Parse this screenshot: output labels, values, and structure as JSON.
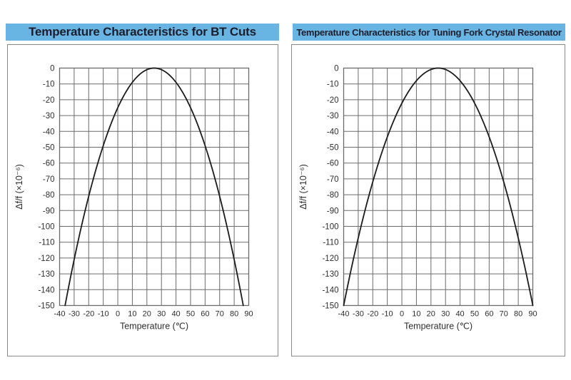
{
  "colors": {
    "background": "#ffffff",
    "title_bg": "#68b5e4",
    "title_text": "#1d1d2b",
    "panel_border": "#8a8a8a",
    "grid_line": "#6b6b6b",
    "axis_text": "#2e2e2e",
    "curve": "#1c1c1c"
  },
  "chart_data": [
    {
      "type": "line",
      "title": "Temperature Characteristics for BT Cuts",
      "xlabel": "Temperature (℃)",
      "ylabel": "Δf/f (×10⁻⁶)",
      "xlim": [
        -40,
        90
      ],
      "ylim": [
        -150,
        0
      ],
      "x_ticks": [
        -40,
        -30,
        -20,
        -10,
        0,
        10,
        20,
        30,
        40,
        50,
        60,
        70,
        80,
        90
      ],
      "y_ticks": [
        0,
        -10,
        -20,
        -30,
        -40,
        -50,
        -60,
        -70,
        -80,
        -90,
        -100,
        -110,
        -120,
        -130,
        -140,
        -150
      ],
      "grid": true,
      "legend": null,
      "curve": {
        "model": "parabola",
        "formula": "Δf/f = k × (T − 25)²",
        "k": -0.04,
        "turnover_temp_c": 25,
        "peak": [
          25,
          0
        ],
        "points": [
          [
            -36.2,
            -150
          ],
          [
            -30,
            -121
          ],
          [
            -20,
            -81
          ],
          [
            -10,
            -49
          ],
          [
            0,
            -25
          ],
          [
            10,
            -9
          ],
          [
            20,
            -1
          ],
          [
            25,
            0
          ],
          [
            30,
            -1
          ],
          [
            40,
            -9
          ],
          [
            50,
            -25
          ],
          [
            60,
            -49
          ],
          [
            70,
            -81
          ],
          [
            80,
            -121
          ],
          [
            86.2,
            -150
          ]
        ]
      }
    },
    {
      "type": "line",
      "title": "Temperature Characteristics for Tuning Fork Crystal Resonator",
      "xlabel": "Temperature (℃)",
      "ylabel": "Δf/f (×10⁻⁶)",
      "xlim": [
        -40,
        90
      ],
      "ylim": [
        -150,
        0
      ],
      "x_ticks": [
        -40,
        -30,
        -20,
        -10,
        0,
        10,
        20,
        30,
        40,
        50,
        60,
        70,
        80,
        90
      ],
      "y_ticks": [
        0,
        -10,
        -20,
        -30,
        -40,
        -50,
        -60,
        -70,
        -80,
        -90,
        -100,
        -110,
        -120,
        -130,
        -140,
        -150
      ],
      "grid": true,
      "legend": null,
      "curve": {
        "model": "parabola",
        "formula": "Δf/f = k × (T − 25)²",
        "k": -0.0355,
        "turnover_temp_c": 25,
        "peak": [
          25,
          0
        ],
        "points": [
          [
            -40,
            -150
          ],
          [
            -30,
            -107.4
          ],
          [
            -20,
            -71.9
          ],
          [
            -10,
            -43.5
          ],
          [
            0,
            -22.2
          ],
          [
            10,
            -8
          ],
          [
            20,
            -0.9
          ],
          [
            25,
            0
          ],
          [
            30,
            -0.9
          ],
          [
            40,
            -8
          ],
          [
            50,
            -22.2
          ],
          [
            60,
            -43.5
          ],
          [
            70,
            -71.9
          ],
          [
            80,
            -107.4
          ],
          [
            90,
            -150
          ]
        ]
      }
    }
  ]
}
